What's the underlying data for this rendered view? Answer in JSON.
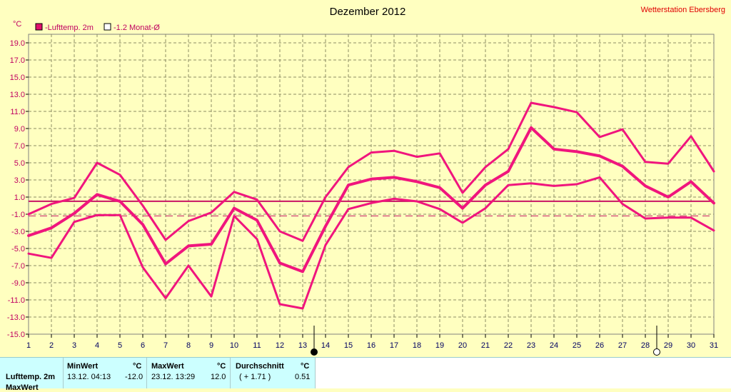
{
  "window": {
    "station": "Wetterstation Ebersberg"
  },
  "chart_data": {
    "type": "line",
    "title": "Dezember 2012",
    "ylabel": "°C",
    "ylim": [
      -15,
      20
    ],
    "yticks": [
      "19.0",
      "17.0",
      "15.0",
      "13.0",
      "11.0",
      "9.0",
      "7.0",
      "5.0",
      "3.0",
      "1.0",
      "-1.0",
      "-3.0",
      "-5.0",
      "-7.0",
      "-9.0",
      "-11.0",
      "-13.0",
      "-15.0"
    ],
    "ytick_values": [
      19,
      17,
      15,
      13,
      11,
      9,
      7,
      5,
      3,
      1,
      -1,
      -3,
      -5,
      -7,
      -9,
      -11,
      -13,
      -15
    ],
    "x": [
      1,
      2,
      3,
      4,
      5,
      6,
      7,
      8,
      9,
      10,
      11,
      12,
      13,
      14,
      15,
      16,
      17,
      18,
      19,
      20,
      21,
      22,
      23,
      24,
      25,
      26,
      27,
      28,
      29,
      30,
      31
    ],
    "xticks": [
      "1",
      "2",
      "3",
      "4",
      "5",
      "6",
      "7",
      "8",
      "9",
      "10",
      "11",
      "12",
      "13",
      "14",
      "15",
      "16",
      "17",
      "18",
      "19",
      "20",
      "21",
      "22",
      "23",
      "24",
      "25",
      "26",
      "27",
      "28",
      "29",
      "30",
      "31"
    ],
    "grid": true,
    "legend": [
      {
        "label": "-Lufttemp. 2m",
        "marker": "filled"
      },
      {
        "label": "-1.2 Monat-Ø",
        "marker": "hollow"
      }
    ],
    "series": [
      {
        "role": "max",
        "values": [
          -1.0,
          0.2,
          0.9,
          5.0,
          3.6,
          0.0,
          -4.0,
          -1.8,
          -0.8,
          1.6,
          0.7,
          -3.0,
          -4.1,
          1.0,
          4.5,
          6.2,
          6.4,
          5.7,
          6.1,
          1.5,
          4.5,
          6.6,
          12.0,
          11.5,
          10.9,
          8.0,
          8.9,
          5.1,
          4.9,
          8.1,
          4.0
        ]
      },
      {
        "role": "mean",
        "values": [
          -3.5,
          -2.6,
          -0.9,
          1.3,
          0.5,
          -2.2,
          -6.8,
          -4.7,
          -4.5,
          -0.3,
          -1.7,
          -6.7,
          -7.7,
          -2.4,
          2.4,
          3.1,
          3.3,
          2.8,
          2.1,
          -0.3,
          2.4,
          4.0,
          9.1,
          6.6,
          6.3,
          5.8,
          4.6,
          2.3,
          1.0,
          2.8,
          0.3
        ]
      },
      {
        "role": "min",
        "values": [
          -5.6,
          -6.1,
          -1.9,
          -1.1,
          -1.1,
          -7.2,
          -10.8,
          -7.0,
          -10.6,
          -1.2,
          -3.9,
          -11.5,
          -12.0,
          -4.6,
          -0.4,
          0.3,
          0.8,
          0.5,
          -0.4,
          -2.0,
          -0.3,
          2.4,
          2.6,
          2.3,
          2.5,
          3.3,
          0.2,
          -1.5,
          -1.4,
          -1.4,
          -2.9
        ]
      }
    ],
    "reference_lines": [
      {
        "value": 0.51,
        "style": "solid"
      },
      {
        "value": 0.5,
        "style": "dashed"
      },
      {
        "value": -1.2,
        "style": "dashed"
      }
    ],
    "markers": [
      {
        "x": 13,
        "symbol": "filled-circle"
      },
      {
        "x": 28,
        "symbol": "hollow-circle"
      }
    ],
    "line_color": "#f0157d",
    "ref_color": "#c81464"
  },
  "stats": {
    "row_label": "Lufttemp. 2m",
    "row_label2": "MaxWert",
    "min": {
      "header": "MinWert",
      "unit": "°C",
      "time": "13.12.  04:13",
      "value": "-12.0"
    },
    "max": {
      "header": "MaxWert",
      "unit": "°C",
      "time": "23.12.  13:29",
      "value": "12.0"
    },
    "avg": {
      "header": "Durchschnitt",
      "unit": "°C",
      "deviation": "( + 1.71 )",
      "value": "0.51"
    }
  }
}
